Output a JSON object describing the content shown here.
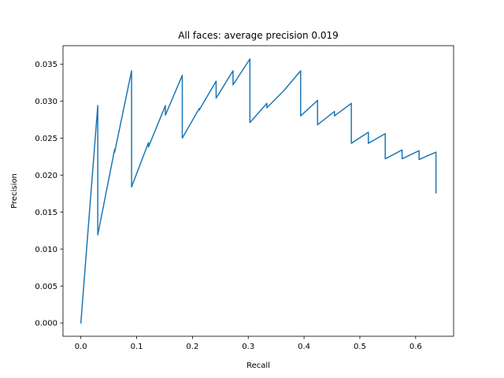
{
  "chart_data": {
    "type": "line",
    "title": "All faces: average precision 0.019",
    "xlabel": "Recall",
    "ylabel": "Precision",
    "xlim": [
      -0.032,
      0.668
    ],
    "ylim": [
      -0.0018,
      0.0375
    ],
    "xticks": [
      0.0,
      0.1,
      0.2,
      0.3,
      0.4,
      0.5,
      0.6
    ],
    "xtick_labels": [
      "0.0",
      "0.1",
      "0.2",
      "0.3",
      "0.4",
      "0.5",
      "0.6"
    ],
    "yticks": [
      0.0,
      0.005,
      0.01,
      0.015,
      0.02,
      0.025,
      0.03,
      0.035
    ],
    "ytick_labels": [
      "0.000",
      "0.005",
      "0.010",
      "0.015",
      "0.020",
      "0.025",
      "0.030",
      "0.035"
    ],
    "grid": false,
    "legend": "none",
    "series": [
      {
        "color": "#1f77b4",
        "x": [
          0.0,
          0.0303,
          0.0303,
          0.0606,
          0.0606,
          0.0909,
          0.0909,
          0.1212,
          0.1212,
          0.1515,
          0.1515,
          0.1818,
          0.1818,
          0.2121,
          0.2121,
          0.2424,
          0.2424,
          0.2727,
          0.2727,
          0.303,
          0.303,
          0.3333,
          0.3333,
          0.3636,
          0.3939,
          0.3939,
          0.4242,
          0.4242,
          0.4545,
          0.4545,
          0.4848,
          0.4848,
          0.5152,
          0.5152,
          0.5455,
          0.5455,
          0.5758,
          0.5758,
          0.6061,
          0.6061,
          0.6364,
          0.6364
        ],
        "y": [
          0.0,
          0.0294,
          0.0119,
          0.0235,
          0.0231,
          0.0341,
          0.0184,
          0.0244,
          0.0238,
          0.0294,
          0.0281,
          0.0335,
          0.025,
          0.029,
          0.0288,
          0.0327,
          0.0304,
          0.0341,
          0.0322,
          0.0357,
          0.0271,
          0.0297,
          0.0291,
          0.0314,
          0.0341,
          0.028,
          0.0301,
          0.0268,
          0.0286,
          0.028,
          0.0297,
          0.0243,
          0.0258,
          0.0243,
          0.0256,
          0.0222,
          0.0234,
          0.0222,
          0.0233,
          0.0221,
          0.0231,
          0.0176
        ]
      }
    ]
  }
}
